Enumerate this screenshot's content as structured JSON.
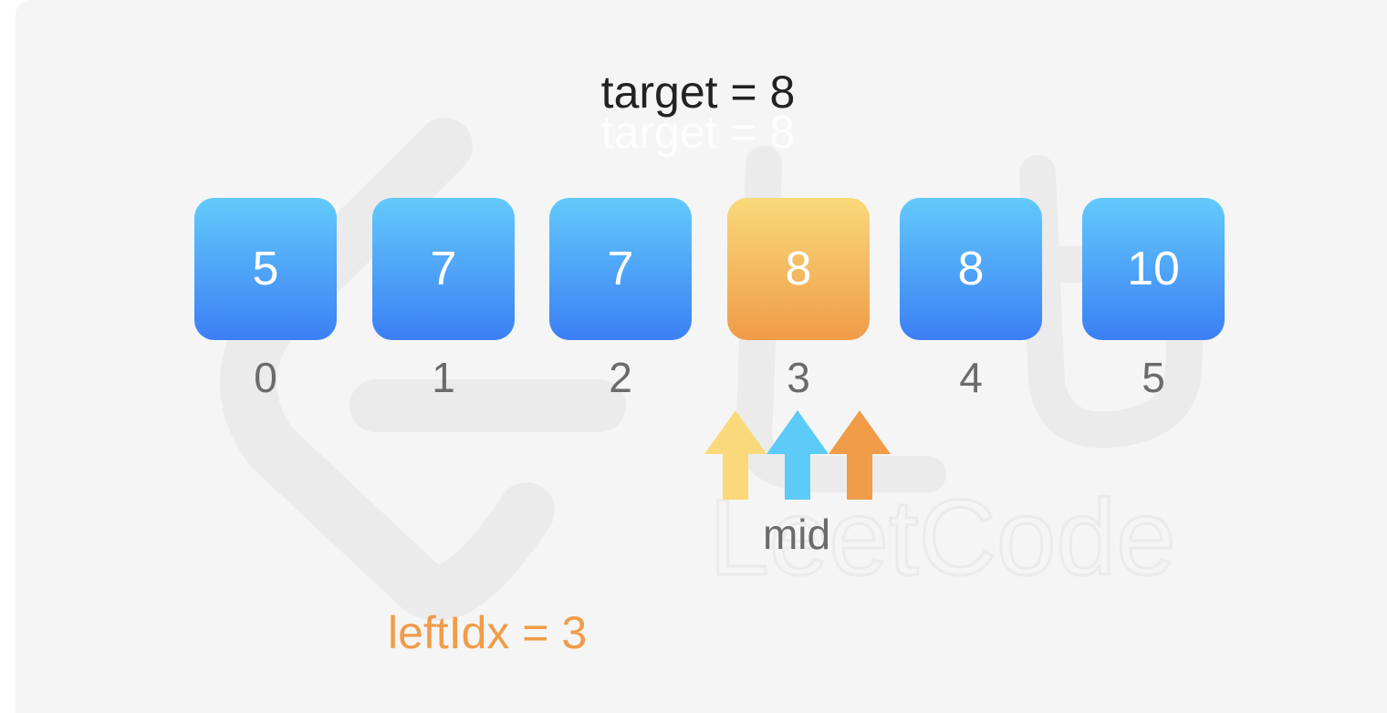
{
  "target_label": "target = 8",
  "array": {
    "values": [
      "5",
      "7",
      "7",
      "8",
      "8",
      "10"
    ],
    "indices": [
      "0",
      "1",
      "2",
      "3",
      "4",
      "5"
    ],
    "highlighted_index": 3
  },
  "pointers": {
    "mid_label": "mid",
    "arrow_colors": [
      "#f9d97a",
      "#5ccbf7",
      "#f09c48"
    ]
  },
  "result_label": "leftIdx = 3",
  "watermark_text": "LeetCode",
  "colors": {
    "cell_blue_top": "#63cafb",
    "cell_blue_bottom": "#3b7ff4",
    "cell_orange_top": "#f9d97a",
    "cell_orange_bottom": "#f09c48",
    "result_text": "#f09c48"
  }
}
